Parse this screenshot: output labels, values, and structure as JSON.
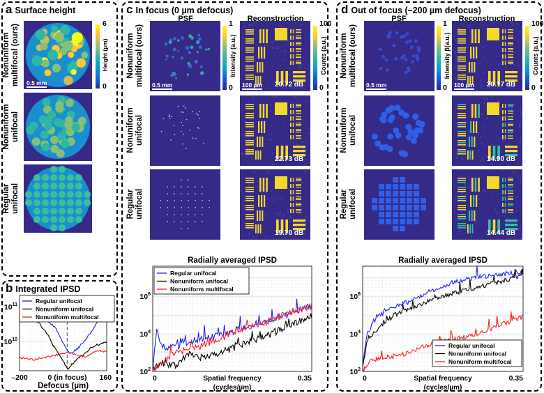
{
  "colors": {
    "blue": "#1f1fff",
    "black": "#000000",
    "red": "#ff1a1a",
    "parula_dark": "#352a87",
    "parula_yellow": "#f9fb0e"
  },
  "panel_a": {
    "letter": "a",
    "title": "Surface height",
    "rows": [
      [
        "Nonuniform",
        "multifocal (ours)"
      ],
      [
        "Nonuniform",
        "unifocal"
      ],
      [
        "Regular",
        "unifocal"
      ]
    ],
    "colorbar": {
      "max": "6",
      "min": "0",
      "label": "Height (µm)"
    },
    "scalebar": "0.5 mm"
  },
  "panel_b": {
    "letter": "b",
    "title": "Integrated IPSD"
  },
  "panel_c": {
    "letter": "c",
    "title": "In focus (0 µm defocus)",
    "col_psf": "PSF",
    "col_recon": "Reconstruction",
    "rows": [
      [
        "Nonuniform",
        "multifocal (ours)"
      ],
      [
        "Nonuniform",
        "unifocal"
      ],
      [
        "Regular",
        "unifocal"
      ]
    ],
    "psf_colorbar": {
      "max": "1",
      "min": "0",
      "label": "Intensity (a.u.)"
    },
    "recon_colorbar": {
      "max": "100",
      "min": "0",
      "label": "Counts (a.u.)"
    },
    "psf_scalebar": "0.5 mm",
    "recon_scalebar": "100 µm",
    "psnr": [
      "20.72 dB",
      "22.73 dB",
      "19.70 dB"
    ]
  },
  "panel_d": {
    "letter": "d",
    "title": "Out of focus (–200 µm defocus)",
    "col_psf": "PSF",
    "col_recon": "Reconstruction",
    "rows": [
      [
        "Nonuniform",
        "multifocal (ours)"
      ],
      [
        "Nonuniform",
        "unifocal"
      ],
      [
        "Regular",
        "unifocal"
      ]
    ],
    "psf_colorbar": {
      "max": "1",
      "min": "0",
      "label": "Intensity β(a.u.)"
    },
    "recon_colorbar": {
      "max": "100",
      "min": "0",
      "label": "Counts (a.u.)"
    },
    "psf_scalebar": "0.5 mm",
    "recon_scalebar": "100 µm",
    "psnr": [
      "20.17 dB",
      "14.90 dB",
      "14.44 dB"
    ]
  },
  "chart_data": [
    {
      "id": "b",
      "type": "line",
      "title": "Integrated IPSD",
      "xlabel": "Defocus (µm)",
      "ylabel": "",
      "xscale": "linear",
      "yscale": "log",
      "xlim": [
        -200,
        165
      ],
      "ylim": [
        1450000000.0,
        115000000000.0
      ],
      "grid": true,
      "legend_position": "top",
      "xticks": [
        {
          "v": -200,
          "label": "–200"
        },
        {
          "v": 0,
          "label": "0 (in focus)"
        },
        {
          "v": 160,
          "label": "160"
        }
      ],
      "yticks": [
        {
          "v": 100000000000.0,
          "base": "10",
          "exp": "11"
        },
        {
          "v": 10000000000.0,
          "base": "10",
          "exp": "10"
        }
      ],
      "annotation": "dashed line at 0 (in focus)",
      "series": [
        {
          "name": "Regular unifocal",
          "color": "#1f1fff",
          "x": [
            -180,
            -150,
            -100,
            -50,
            -20,
            0,
            10,
            40,
            80,
            120,
            140,
            165
          ],
          "y": [
            115000000000.0,
            90000000000.0,
            50000000000.0,
            25000000000.0,
            10000000000.0,
            5500000000.0,
            4500000000.0,
            6000000000.0,
            12000000000.0,
            30000000000.0,
            50000000000.0,
            50000000000.0
          ]
        },
        {
          "name": "Nonuniform unifocal",
          "color": "#000000",
          "x": [
            -200,
            -170,
            -150,
            -120,
            -80,
            -50,
            -20,
            0,
            20,
            50,
            100,
            140,
            165
          ],
          "y": [
            110000000000.0,
            70000000000.0,
            50000000000.0,
            35000000000.0,
            15000000000.0,
            6000000000.0,
            3000000000.0,
            1600000000.0,
            2200000000.0,
            3500000000.0,
            6500000000.0,
            9000000000.0,
            9000000000.0
          ]
        },
        {
          "name": "Nonuniform multifocal",
          "color": "#ff1a1a",
          "x": [
            -200,
            -150,
            -100,
            -50,
            0,
            40,
            80,
            120,
            165
          ],
          "y": [
            3500000000.0,
            3000000000.0,
            3400000000.0,
            4000000000.0,
            5000000000.0,
            4000000000.0,
            3600000000.0,
            5500000000.0,
            5000000000.0
          ]
        }
      ]
    },
    {
      "id": "c",
      "type": "line",
      "title": "Radially averaged IPSD",
      "xlabel": "Spatial frequency",
      "xlabel2": "(cycles/µm)",
      "xscale": "linear",
      "yscale": "log",
      "xlim": [
        0,
        0.35
      ],
      "ylim": [
        100.0,
        40000000.0
      ],
      "grid": true,
      "legend_position": "top-left",
      "xticks": [
        {
          "v": 0,
          "label": "0"
        },
        {
          "v": 0.35,
          "label": "0.35"
        }
      ],
      "yticks": [
        {
          "v": 1000000.0,
          "base": "10",
          "exp": "6"
        },
        {
          "v": 10000.0,
          "base": "10",
          "exp": "4"
        },
        {
          "v": 100.0,
          "base": "10",
          "exp": "2"
        }
      ],
      "series": [
        {
          "name": "Regular unifocal",
          "color": "#1f1fff",
          "x": [
            0,
            0.008,
            0.02,
            0.05,
            0.1,
            0.15,
            0.2,
            0.25,
            0.3,
            0.35
          ],
          "y": [
            150.0,
            15000.0,
            2000.0,
            2000.0,
            5000.0,
            8000.0,
            20000.0,
            50000.0,
            120000.0,
            300000.0
          ]
        },
        {
          "name": "Nonuniform unifocal",
          "color": "#000000",
          "x": [
            0,
            0.02,
            0.05,
            0.08,
            0.1,
            0.15,
            0.2,
            0.25,
            0.3,
            0.35
          ],
          "y": [
            150.0,
            300.0,
            200.0,
            1000.0,
            500.0,
            1000.0,
            3000.0,
            8000.0,
            25000.0,
            100000.0
          ]
        },
        {
          "name": "Nonuniform multifocal",
          "color": "#ff1a1a",
          "x": [
            0,
            0.02,
            0.05,
            0.1,
            0.15,
            0.2,
            0.25,
            0.3,
            0.35
          ],
          "y": [
            100.0,
            300.0,
            1000.0,
            2000.0,
            6000.0,
            20000.0,
            40000.0,
            150000.0,
            300000.0
          ]
        }
      ]
    },
    {
      "id": "d",
      "type": "line",
      "title": "Radially averaged IPSD",
      "xlabel": "Spatial frequency",
      "xlabel2": "(cycles/µm)",
      "xscale": "linear",
      "yscale": "log",
      "xlim": [
        0,
        0.35
      ],
      "ylim": [
        100.0,
        40000000.0
      ],
      "grid": true,
      "legend_position": "bottom-right",
      "xticks": [
        {
          "v": 0,
          "label": "0"
        },
        {
          "v": 0.35,
          "label": "0.35"
        }
      ],
      "yticks": [
        {
          "v": 1000000.0,
          "base": "10",
          "exp": "6"
        },
        {
          "v": 10000.0,
          "base": "10",
          "exp": "4"
        },
        {
          "v": 100.0,
          "base": "10",
          "exp": "2"
        }
      ],
      "series": [
        {
          "name": "Regular unifocal",
          "color": "#1f1fff",
          "x": [
            0,
            0.01,
            0.03,
            0.07,
            0.1,
            0.15,
            0.2,
            0.25,
            0.3,
            0.35
          ],
          "y": [
            300.0,
            10000.0,
            80000.0,
            300000.0,
            500000.0,
            2000000.0,
            6000000.0,
            10000000.0,
            15000000.0,
            20000000.0
          ]
        },
        {
          "name": "Nonuniform unifocal",
          "color": "#000000",
          "x": [
            0,
            0.01,
            0.04,
            0.07,
            0.1,
            0.15,
            0.2,
            0.25,
            0.3,
            0.35
          ],
          "y": [
            200.0,
            5000.0,
            30000.0,
            100000.0,
            200000.0,
            600000.0,
            1500000.0,
            3000000.0,
            6000000.0,
            12000000.0
          ]
        },
        {
          "name": "Nonuniform multifocal",
          "color": "#ff1a1a",
          "x": [
            0,
            0.02,
            0.05,
            0.1,
            0.15,
            0.2,
            0.25,
            0.3,
            0.35
          ],
          "y": [
            100.0,
            400.0,
            500.0,
            1000.0,
            3000.0,
            5000.0,
            10000.0,
            30000.0,
            80000.0
          ]
        }
      ]
    }
  ]
}
